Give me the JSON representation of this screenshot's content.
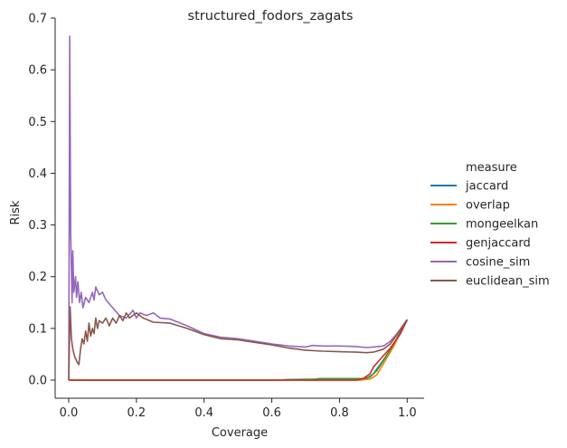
{
  "chart_data": {
    "type": "line",
    "title": "structured_fodors_zagats",
    "xlabel": "Coverage",
    "ylabel": "Risk",
    "xlim": [
      -0.04,
      1.05
    ],
    "ylim": [
      -0.035,
      0.7
    ],
    "xticks": [
      0.0,
      0.2,
      0.4,
      0.6,
      0.8,
      1.0
    ],
    "xtick_labels": [
      "0.0",
      "0.2",
      "0.4",
      "0.6",
      "0.8",
      "1.0"
    ],
    "yticks": [
      0.0,
      0.1,
      0.2,
      0.3,
      0.4,
      0.5,
      0.6,
      0.7
    ],
    "ytick_labels": [
      "0.0",
      "0.1",
      "0.2",
      "0.3",
      "0.4",
      "0.5",
      "0.6",
      "0.7"
    ],
    "grid": false,
    "legend_title": "measure",
    "legend_position": "right",
    "series": [
      {
        "name": "jaccard",
        "color": "#1f77b4",
        "points": [
          [
            0.0,
            0.0
          ],
          [
            0.85,
            0.0
          ],
          [
            0.88,
            0.003
          ],
          [
            0.9,
            0.012
          ],
          [
            0.92,
            0.03
          ],
          [
            0.95,
            0.058
          ],
          [
            0.98,
            0.09
          ],
          [
            1.0,
            0.117
          ]
        ]
      },
      {
        "name": "overlap",
        "color": "#ff7f0e",
        "points": [
          [
            0.0,
            0.0
          ],
          [
            0.86,
            0.0
          ],
          [
            0.89,
            0.002
          ],
          [
            0.91,
            0.01
          ],
          [
            0.93,
            0.032
          ],
          [
            0.96,
            0.065
          ],
          [
            0.98,
            0.092
          ],
          [
            1.0,
            0.117
          ]
        ]
      },
      {
        "name": "mongeelkan",
        "color": "#2ca02c",
        "points": [
          [
            0.0,
            0.0
          ],
          [
            0.63,
            0.0
          ],
          [
            0.64,
            0.001
          ],
          [
            0.73,
            0.002
          ],
          [
            0.74,
            0.003
          ],
          [
            0.87,
            0.003
          ],
          [
            0.89,
            0.006
          ],
          [
            0.91,
            0.018
          ],
          [
            0.93,
            0.038
          ],
          [
            0.96,
            0.07
          ],
          [
            0.98,
            0.093
          ],
          [
            1.0,
            0.117
          ]
        ]
      },
      {
        "name": "genjaccard",
        "color": "#d62728",
        "points": [
          [
            0.0,
            0.0
          ],
          [
            0.85,
            0.0
          ],
          [
            0.87,
            0.003
          ],
          [
            0.89,
            0.012
          ],
          [
            0.9,
            0.025
          ],
          [
            0.92,
            0.04
          ],
          [
            0.95,
            0.062
          ],
          [
            0.98,
            0.09
          ],
          [
            1.0,
            0.117
          ]
        ]
      },
      {
        "name": "cosine_sim",
        "color": "#9467bd",
        "points": [
          [
            0.0,
            0.0
          ],
          [
            0.003,
            0.665
          ],
          [
            0.006,
            0.28
          ],
          [
            0.01,
            0.15
          ],
          [
            0.012,
            0.25
          ],
          [
            0.015,
            0.17
          ],
          [
            0.02,
            0.2
          ],
          [
            0.023,
            0.16
          ],
          [
            0.027,
            0.19
          ],
          [
            0.032,
            0.15
          ],
          [
            0.037,
            0.17
          ],
          [
            0.042,
            0.14
          ],
          [
            0.05,
            0.16
          ],
          [
            0.06,
            0.15
          ],
          [
            0.07,
            0.17
          ],
          [
            0.075,
            0.155
          ],
          [
            0.08,
            0.18
          ],
          [
            0.09,
            0.165
          ],
          [
            0.1,
            0.17
          ],
          [
            0.11,
            0.155
          ],
          [
            0.13,
            0.14
          ],
          [
            0.15,
            0.125
          ],
          [
            0.17,
            0.12
          ],
          [
            0.19,
            0.135
          ],
          [
            0.2,
            0.12
          ],
          [
            0.21,
            0.13
          ],
          [
            0.23,
            0.125
          ],
          [
            0.25,
            0.13
          ],
          [
            0.27,
            0.12
          ],
          [
            0.3,
            0.118
          ],
          [
            0.35,
            0.105
          ],
          [
            0.4,
            0.09
          ],
          [
            0.45,
            0.083
          ],
          [
            0.5,
            0.08
          ],
          [
            0.55,
            0.075
          ],
          [
            0.6,
            0.07
          ],
          [
            0.65,
            0.066
          ],
          [
            0.7,
            0.064
          ],
          [
            0.72,
            0.067
          ],
          [
            0.75,
            0.066
          ],
          [
            0.8,
            0.066
          ],
          [
            0.85,
            0.065
          ],
          [
            0.88,
            0.063
          ],
          [
            0.9,
            0.064
          ],
          [
            0.93,
            0.066
          ],
          [
            0.95,
            0.075
          ],
          [
            0.97,
            0.09
          ],
          [
            1.0,
            0.117
          ]
        ]
      },
      {
        "name": "euclidean_sim",
        "color": "#8c564b",
        "points": [
          [
            0.0,
            0.0
          ],
          [
            0.004,
            0.142
          ],
          [
            0.008,
            0.08
          ],
          [
            0.012,
            0.06
          ],
          [
            0.018,
            0.045
          ],
          [
            0.025,
            0.035
          ],
          [
            0.03,
            0.03
          ],
          [
            0.035,
            0.06
          ],
          [
            0.04,
            0.08
          ],
          [
            0.045,
            0.07
          ],
          [
            0.05,
            0.095
          ],
          [
            0.055,
            0.075
          ],
          [
            0.06,
            0.11
          ],
          [
            0.065,
            0.085
          ],
          [
            0.07,
            0.1
          ],
          [
            0.075,
            0.09
          ],
          [
            0.08,
            0.12
          ],
          [
            0.085,
            0.1
          ],
          [
            0.09,
            0.115
          ],
          [
            0.1,
            0.11
          ],
          [
            0.11,
            0.12
          ],
          [
            0.12,
            0.105
          ],
          [
            0.13,
            0.12
          ],
          [
            0.14,
            0.11
          ],
          [
            0.15,
            0.125
          ],
          [
            0.16,
            0.115
          ],
          [
            0.17,
            0.13
          ],
          [
            0.18,
            0.12
          ],
          [
            0.2,
            0.13
          ],
          [
            0.22,
            0.12
          ],
          [
            0.25,
            0.112
          ],
          [
            0.3,
            0.11
          ],
          [
            0.35,
            0.1
          ],
          [
            0.4,
            0.088
          ],
          [
            0.45,
            0.08
          ],
          [
            0.5,
            0.078
          ],
          [
            0.55,
            0.073
          ],
          [
            0.6,
            0.068
          ],
          [
            0.65,
            0.062
          ],
          [
            0.7,
            0.058
          ],
          [
            0.75,
            0.056
          ],
          [
            0.8,
            0.055
          ],
          [
            0.85,
            0.054
          ],
          [
            0.88,
            0.053
          ],
          [
            0.9,
            0.054
          ],
          [
            0.93,
            0.06
          ],
          [
            0.95,
            0.07
          ],
          [
            0.97,
            0.088
          ],
          [
            1.0,
            0.117
          ]
        ]
      }
    ]
  }
}
